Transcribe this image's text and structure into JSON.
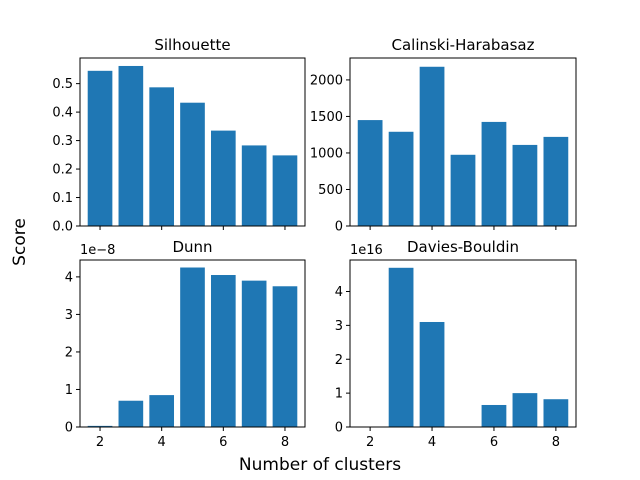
{
  "figure": {
    "ylabel": "Score",
    "xlabel": "Number of clusters"
  },
  "colors": {
    "bar": "#1f77b4"
  },
  "chart_data": [
    {
      "type": "bar",
      "title": "Silhouette",
      "x": [
        2,
        3,
        4,
        5,
        6,
        7,
        8
      ],
      "values": [
        0.545,
        0.562,
        0.487,
        0.433,
        0.335,
        0.283,
        0.248
      ],
      "ylim": [
        0,
        0.59
      ],
      "yticks": [
        0,
        0.1,
        0.2,
        0.3,
        0.4,
        0.5
      ],
      "ytick_labels": [
        "0.0",
        "0.1",
        "0.2",
        "0.3",
        "0.4",
        "0.5"
      ],
      "xticks": [
        2,
        4,
        6,
        8
      ],
      "xtick_labels": [],
      "offset_text": ""
    },
    {
      "type": "bar",
      "title": "Calinski-Harabasaz",
      "x": [
        2,
        3,
        4,
        5,
        6,
        7,
        8
      ],
      "values": [
        1450,
        1290,
        2180,
        975,
        1425,
        1110,
        1220
      ],
      "ylim": [
        0,
        2300
      ],
      "yticks": [
        0,
        500,
        1000,
        1500,
        2000
      ],
      "ytick_labels": [
        "0",
        "500",
        "1000",
        "1500",
        "2000"
      ],
      "xticks": [
        2,
        4,
        6,
        8
      ],
      "xtick_labels": [],
      "offset_text": ""
    },
    {
      "type": "bar",
      "title": "Dunn",
      "x": [
        2,
        3,
        4,
        5,
        6,
        7,
        8
      ],
      "values": [
        0.03,
        0.7,
        0.85,
        4.25,
        4.05,
        3.9,
        3.75
      ],
      "ylim": [
        0,
        4.45
      ],
      "yticks": [
        0,
        1,
        2,
        3,
        4
      ],
      "ytick_labels": [
        "0",
        "1",
        "2",
        "3",
        "4"
      ],
      "xticks": [
        2,
        4,
        6,
        8
      ],
      "xtick_labels": [
        "2",
        "4",
        "6",
        "8"
      ],
      "offset_text": "1e−8"
    },
    {
      "type": "bar",
      "title": "Davies-Bouldin",
      "x": [
        2,
        3,
        4,
        5,
        6,
        7,
        8
      ],
      "values": [
        0,
        4.7,
        3.1,
        0,
        0.65,
        1.0,
        0.82
      ],
      "ylim": [
        0,
        4.93
      ],
      "yticks": [
        0,
        1,
        2,
        3,
        4
      ],
      "ytick_labels": [
        "0",
        "1",
        "2",
        "3",
        "4"
      ],
      "xticks": [
        2,
        4,
        6,
        8
      ],
      "xtick_labels": [
        "2",
        "4",
        "6",
        "8"
      ],
      "offset_text": "1e16"
    }
  ]
}
